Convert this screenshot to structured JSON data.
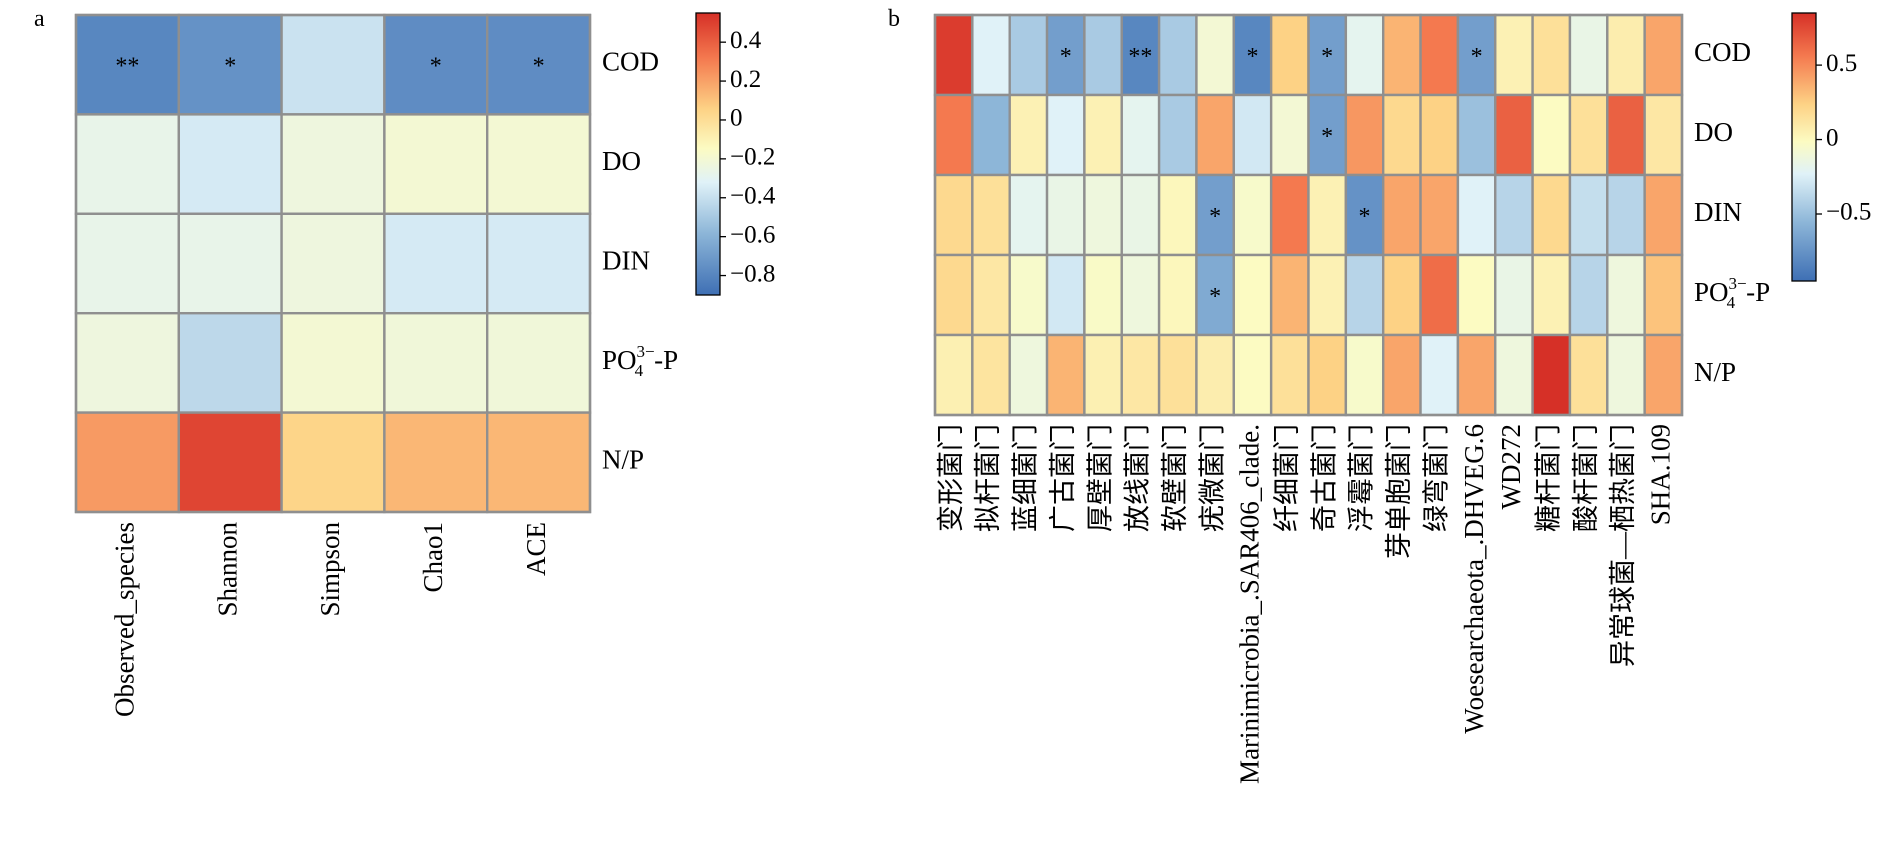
{
  "panels": [
    {
      "label": "a"
    },
    {
      "label": "b"
    }
  ],
  "chart_data": [
    {
      "type": "heatmap",
      "panel": "a",
      "rows": [
        "COD",
        "DO",
        "DIN",
        "PO43−-P",
        "N/P"
      ],
      "row_labels_display": [
        {
          "base": "COD"
        },
        {
          "base": "DO"
        },
        {
          "base": "DIN"
        },
        {
          "base": "PO",
          "sub": "4",
          "sup": "3−",
          "suffix": "-P"
        },
        {
          "base": "N/P"
        }
      ],
      "columns": [
        "Observed_species",
        "Shannon",
        "Simpson",
        "Chao1",
        "ACE"
      ],
      "values": [
        [
          -0.82,
          -0.78,
          -0.48,
          -0.8,
          -0.8
        ],
        [
          -0.35,
          -0.45,
          -0.3,
          -0.25,
          -0.25
        ],
        [
          -0.35,
          -0.35,
          -0.3,
          -0.45,
          -0.45
        ],
        [
          -0.3,
          -0.52,
          -0.25,
          -0.28,
          -0.28
        ],
        [
          0.22,
          0.48,
          0.05,
          0.14,
          0.14
        ]
      ],
      "significance": [
        [
          "**",
          "*",
          "",
          "*",
          "*"
        ],
        [
          "",
          "",
          "",
          "",
          ""
        ],
        [
          "",
          "",
          "",
          "",
          ""
        ],
        [
          "",
          "",
          "",
          "",
          ""
        ],
        [
          "",
          "",
          "",
          "",
          ""
        ]
      ],
      "colorbar": {
        "range": [
          -0.9,
          0.55
        ],
        "ticks": [
          0.4,
          0.2,
          0,
          -0.2,
          -0.4,
          -0.6,
          -0.8
        ],
        "tick_labels": [
          "0.4",
          "0.2",
          "0",
          "−0.2",
          "−0.4",
          "−0.6",
          "−0.8"
        ],
        "colors": [
          "#3e6fb4",
          "#8db6d8",
          "#e0f2f8",
          "#fcfbc2",
          "#fdd285",
          "#f4794f",
          "#d63027"
        ]
      },
      "legend_placement": "right"
    },
    {
      "type": "heatmap",
      "panel": "b",
      "rows": [
        "COD",
        "DO",
        "DIN",
        "PO43−-P",
        "N/P"
      ],
      "row_labels_display": [
        {
          "base": "COD"
        },
        {
          "base": "DO"
        },
        {
          "base": "DIN"
        },
        {
          "base": "PO",
          "sub": "4",
          "sup": "3−",
          "suffix": "-P"
        },
        {
          "base": "N/P"
        }
      ],
      "columns": [
        "变形菌门",
        "拟杆菌门",
        "蓝细菌门",
        "广古菌门",
        "厚壁菌门",
        "放线菌门",
        "软壁菌门",
        "疣微菌门",
        "Marinimicrobia_.SAR406_clade.",
        "纤细菌门",
        "奇古菌门",
        "浮霉菌门",
        "芽单胞菌门",
        "绿弯菌门",
        "Woesearchaeota_.DHVEG.6",
        "WD272",
        "糖杆菌门",
        "酸杆菌门",
        "异常球菌—栖热菌门",
        "SHA.109"
      ],
      "values": [
        [
          0.8,
          -0.35,
          -0.55,
          -0.75,
          -0.55,
          -0.85,
          -0.55,
          -0.15,
          -0.85,
          0.25,
          -0.75,
          -0.3,
          0.35,
          0.55,
          -0.75,
          0.02,
          0.15,
          -0.25,
          0.05,
          0.4
        ],
        [
          0.55,
          -0.65,
          0.02,
          -0.35,
          0.02,
          -0.3,
          -0.55,
          0.4,
          -0.4,
          -0.15,
          -0.75,
          0.45,
          0.2,
          0.25,
          -0.6,
          0.65,
          -0.05,
          0.15,
          0.65,
          0.1
        ],
        [
          0.2,
          0.15,
          -0.3,
          -0.25,
          -0.2,
          -0.25,
          -0.02,
          -0.75,
          -0.1,
          0.55,
          0.02,
          -0.8,
          0.4,
          0.4,
          -0.35,
          -0.5,
          0.2,
          -0.45,
          -0.5,
          0.4
        ],
        [
          0.2,
          0.1,
          -0.1,
          -0.4,
          -0.08,
          -0.2,
          -0.02,
          -0.7,
          -0.05,
          0.35,
          0.02,
          -0.5,
          0.25,
          0.6,
          -0.05,
          -0.25,
          0.02,
          -0.5,
          -0.2,
          0.3
        ],
        [
          0.03,
          0.12,
          -0.2,
          0.35,
          0.03,
          0.1,
          0.15,
          0.05,
          -0.05,
          0.15,
          0.25,
          -0.1,
          0.4,
          -0.35,
          0.4,
          -0.2,
          0.85,
          0.15,
          -0.2,
          0.4
        ]
      ],
      "significance": [
        [
          "",
          "",
          "",
          "*",
          "",
          "**",
          "",
          "",
          "*",
          "",
          "*",
          "",
          "",
          "",
          "*",
          "",
          "",
          "",
          "",
          ""
        ],
        [
          "",
          "",
          "",
          "",
          "",
          "",
          "",
          "",
          "",
          "",
          "*",
          "",
          "",
          "",
          "",
          "",
          "",
          "",
          "",
          ""
        ],
        [
          "",
          "",
          "",
          "",
          "",
          "",
          "",
          "*",
          "",
          "",
          "",
          "*",
          "",
          "",
          "",
          "",
          "",
          "",
          "",
          ""
        ],
        [
          "",
          "",
          "",
          "",
          "",
          "",
          "",
          "*",
          "",
          "",
          "",
          "",
          "",
          "",
          "",
          "",
          "",
          "",
          "",
          ""
        ],
        [
          "",
          "",
          "",
          "",
          "",
          "",
          "",
          "",
          "",
          "",
          "",
          "",
          "",
          "",
          "",
          "",
          "",
          "",
          "",
          ""
        ]
      ],
      "colorbar": {
        "range": [
          -0.95,
          0.85
        ],
        "ticks": [
          0.5,
          0,
          -0.5
        ],
        "tick_labels": [
          "0.5",
          "0",
          "−0.5"
        ],
        "colors": [
          "#3e6fb4",
          "#8db6d8",
          "#e0f2f8",
          "#fcfbc2",
          "#fdd285",
          "#f4794f",
          "#d63027"
        ]
      },
      "legend_placement": "right"
    }
  ]
}
